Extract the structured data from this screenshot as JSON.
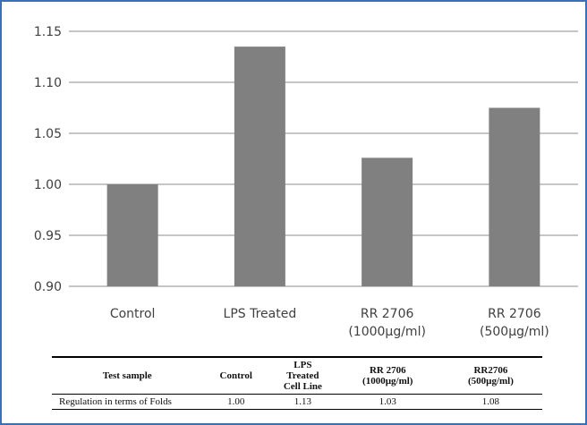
{
  "chart_data": {
    "type": "bar",
    "title": "",
    "xlabel": "",
    "ylabel": "",
    "categories": [
      "Control",
      "LPS Treated",
      "RR 2706\n(1000µg/ml)",
      "RR 2706\n(500µg/ml)"
    ],
    "values": [
      1.0,
      1.135,
      1.026,
      1.075
    ],
    "ylim": [
      0.9,
      1.15
    ],
    "yticks": [
      "0.90",
      "0.95",
      "1.00",
      "1.05",
      "1.10",
      "1.15"
    ],
    "grid": true,
    "bar_color": "#808080",
    "grid_color": "#8c8c8c"
  },
  "table": {
    "headers": [
      "Test sample",
      "Control",
      "LPS\nTreated\nCell Line",
      "RR 2706\n(1000µg/ml)",
      "RR2706\n(500µg/ml)"
    ],
    "rows": [
      [
        "Regulation in terms of Folds",
        "1.00",
        "1.13",
        "1.03",
        "1.08"
      ]
    ]
  },
  "colors": {
    "border": "#3b6fb6"
  }
}
